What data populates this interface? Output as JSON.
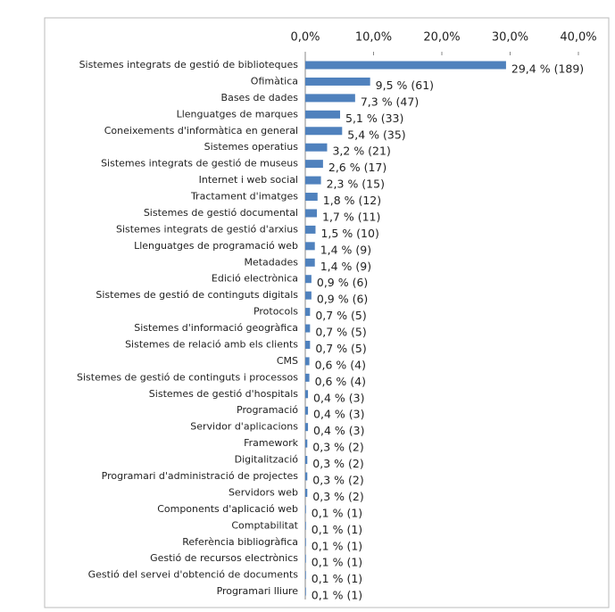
{
  "chart_data": {
    "type": "barh",
    "categories": [
      "Sistemes integrats de gestió de biblioteques",
      "Ofimàtica",
      "Bases de dades",
      "Llenguatges de marques",
      "Coneixements d'informàtica en general",
      "Sistemes operatius",
      "Sistemes integrats de gestió de museus",
      "Internet i web social",
      "Tractament d'imatges",
      "Sistemes de gestió documental",
      "Sistemes integrats de gestió d'arxius",
      "Llenguatges de programació web",
      "Metadades",
      "Edició electrònica",
      "Sistemes de gestió de continguts digitals",
      "Protocols",
      "Sistemes d'informació geogràfica",
      "Sistemes de relació amb els clients",
      "CMS",
      "Sistemes de gestió de continguts i processos",
      "Sistemes de gestió d'hospitals",
      "Programació",
      "Servidor d'aplicacions",
      "Framework",
      "Digitalització",
      "Programari d'administració de projectes",
      "Servidors web",
      "Components d'aplicació web",
      "Comptabilitat",
      "Referència bibliogràfica",
      "Gestió de recursos electrònics",
      "Gestió del servei d'obtenció de documents",
      "Programari lliure"
    ],
    "values": [
      29.4,
      9.5,
      7.3,
      5.1,
      5.4,
      3.2,
      2.6,
      2.3,
      1.8,
      1.7,
      1.5,
      1.4,
      1.4,
      0.9,
      0.9,
      0.7,
      0.7,
      0.7,
      0.6,
      0.6,
      0.4,
      0.4,
      0.4,
      0.3,
      0.3,
      0.3,
      0.3,
      0.1,
      0.1,
      0.1,
      0.1,
      0.1,
      0.1
    ],
    "value_labels": [
      "29,4 % (189)",
      "9,5 % (61)",
      "7,3 % (47)",
      "5,1 % (33)",
      "5,4 % (35)",
      "3,2 % (21)",
      "2,6 % (17)",
      "2,3 % (15)",
      "1,8 % (12)",
      "1,7 % (11)",
      "1,5 % (10)",
      "1,4 % (9)",
      "1,4 % (9)",
      "0,9 % (6)",
      "0,9 % (6)",
      "0,7 % (5)",
      "0,7 % (5)",
      "0,7 % (5)",
      "0,6 % (4)",
      "0,6 % (4)",
      "0,4 % (3)",
      "0,4 % (3)",
      "0,4 % (3)",
      "0,3 % (2)",
      "0,3 % (2)",
      "0,3 % (2)",
      "0,3 % (2)",
      "0,1 % (1)",
      "0,1 % (1)",
      "0,1 % (1)",
      "0,1 % (1)",
      "0,1 % (1)",
      "0,1 % (1)"
    ],
    "color": "#4f81bd",
    "xlim": [
      0,
      40
    ],
    "xticks": [
      {
        "value": 0,
        "label": "0,0%"
      },
      {
        "value": 10,
        "label": "10,0%"
      },
      {
        "value": 20,
        "label": "20,0%"
      },
      {
        "value": 30,
        "label": "30,0%"
      },
      {
        "value": 40,
        "label": "40,0%"
      }
    ]
  }
}
